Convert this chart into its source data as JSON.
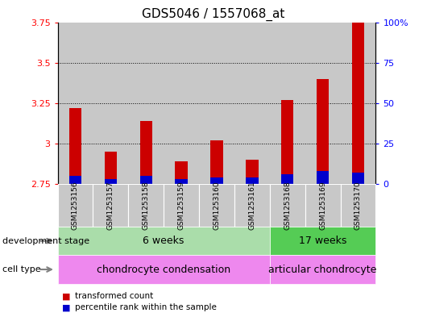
{
  "title": "GDS5046 / 1557068_at",
  "samples": [
    "GSM1253156",
    "GSM1253157",
    "GSM1253158",
    "GSM1253159",
    "GSM1253160",
    "GSM1253161",
    "GSM1253168",
    "GSM1253169",
    "GSM1253170"
  ],
  "red_values": [
    3.22,
    2.95,
    3.14,
    2.89,
    3.02,
    2.9,
    3.27,
    3.4,
    3.75
  ],
  "blue_values": [
    5,
    3,
    5,
    3,
    4,
    4,
    6,
    8,
    7
  ],
  "ymin": 2.75,
  "ymax": 3.75,
  "yticks": [
    2.75,
    3.0,
    3.25,
    3.5,
    3.75
  ],
  "ytick_labels": [
    "2.75",
    "3",
    "3.25",
    "3.5",
    "3.75"
  ],
  "right_yticks": [
    0,
    25,
    50,
    75,
    100
  ],
  "right_ytick_labels": [
    "0",
    "25",
    "50",
    "75",
    "100%"
  ],
  "grid_lines": [
    3.0,
    3.25,
    3.5
  ],
  "red_color": "#cc0000",
  "blue_color": "#0000cc",
  "sample_bg_color": "#c8c8c8",
  "title_fontsize": 11,
  "dev_stage_label": "development stage",
  "cell_type_label": "cell type",
  "dev_stage_groups": [
    {
      "label": "6 weeks",
      "start": 0,
      "end": 5,
      "color": "#aaddaa"
    },
    {
      "label": "17 weeks",
      "start": 6,
      "end": 8,
      "color": "#55cc55"
    }
  ],
  "cell_type_groups": [
    {
      "label": "chondrocyte condensation",
      "start": 0,
      "end": 5,
      "color": "#ee88ee"
    },
    {
      "label": "articular chondrocyte",
      "start": 6,
      "end": 8,
      "color": "#ee88ee"
    }
  ],
  "legend_items": [
    {
      "color": "#cc0000",
      "label": "transformed count"
    },
    {
      "color": "#0000cc",
      "label": "percentile rank within the sample"
    }
  ]
}
